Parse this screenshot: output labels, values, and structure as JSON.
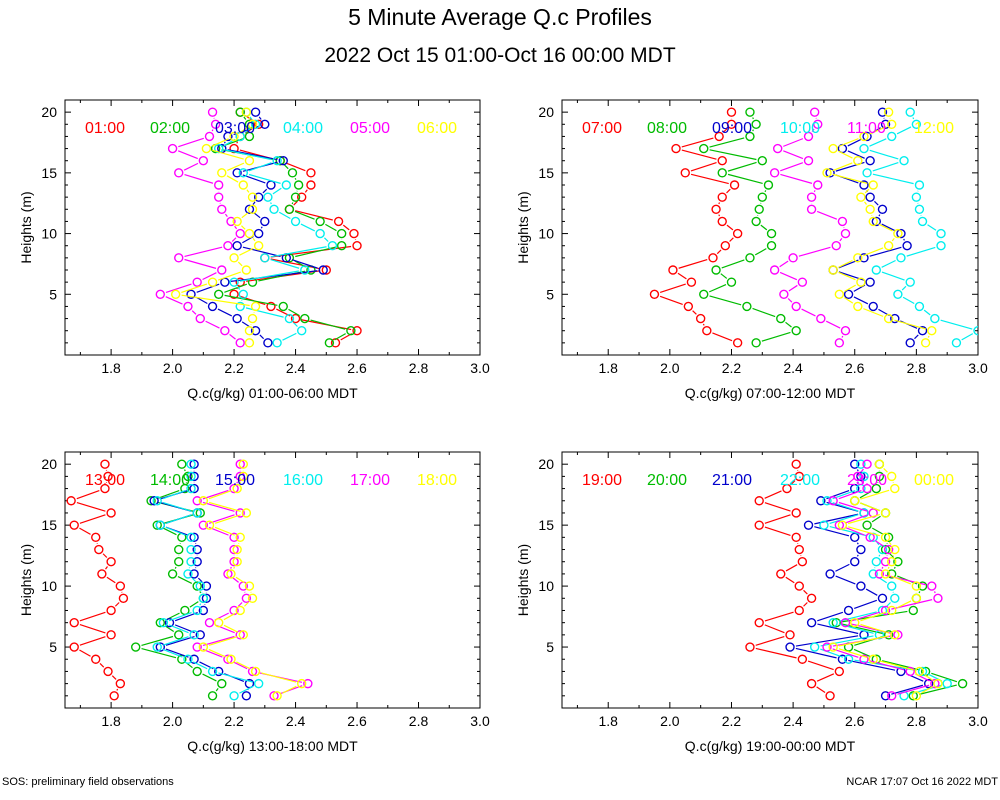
{
  "title": "5 Minute Average Q.c Profiles",
  "subtitle": "2022 Oct 15 01:00-Oct 16 00:00 MDT",
  "footer_left": "SOS: preliminary field observations",
  "footer_right": "NCAR 17:07 Oct 16 2022 MDT",
  "colors": [
    "#ff0000",
    "#00bb00",
    "#0000cc",
    "#00eeee",
    "#ff00ff",
    "#ffff00"
  ],
  "heights": [
    1,
    2,
    3,
    4,
    5,
    6,
    7,
    8,
    9,
    10,
    11,
    12,
    13,
    14,
    15,
    16,
    17,
    18,
    19,
    20
  ],
  "chart_data": [
    {
      "type": "line",
      "xlabel": "Q.c(g/kg) 01:00-06:00 MDT",
      "ylabel": "Heights (m)",
      "xlim": [
        1.65,
        3.0
      ],
      "ylim": [
        0,
        21
      ],
      "xticks": [
        "1.8",
        "2.0",
        "2.2",
        "2.4",
        "2.6",
        "2.8",
        "3.0"
      ],
      "yticks": [
        "5",
        "10",
        "15",
        "20"
      ],
      "series": [
        {
          "name": "01:00",
          "values": [
            2.53,
            2.6,
            2.4,
            2.32,
            2.2,
            2.22,
            2.5,
            2.3,
            2.6,
            2.59,
            2.54,
            2.38,
            2.42,
            2.45,
            2.45,
            2.35,
            2.2,
            2.22,
            2.28,
            2.22
          ]
        },
        {
          "name": "02:00",
          "values": [
            2.51,
            2.58,
            2.43,
            2.36,
            2.15,
            2.26,
            2.45,
            2.38,
            2.55,
            2.55,
            2.48,
            2.38,
            2.4,
            2.41,
            2.39,
            2.35,
            2.14,
            2.25,
            2.25,
            2.22
          ]
        },
        {
          "name": "03:00",
          "values": [
            2.31,
            2.27,
            2.21,
            2.13,
            2.06,
            2.17,
            2.49,
            2.37,
            2.21,
            2.28,
            2.3,
            2.25,
            2.28,
            2.32,
            2.21,
            2.36,
            2.16,
            2.18,
            2.3,
            2.27
          ]
        },
        {
          "name": "04:00",
          "values": [
            2.34,
            2.42,
            2.38,
            2.22,
            2.23,
            2.2,
            2.43,
            2.3,
            2.52,
            2.48,
            2.4,
            2.33,
            2.31,
            2.37,
            2.23,
            2.34,
            2.15,
            2.22,
            2.27,
            2.24
          ]
        },
        {
          "name": "05:00",
          "values": [
            2.22,
            2.17,
            2.09,
            2.05,
            1.96,
            2.08,
            2.16,
            2.02,
            2.18,
            2.22,
            2.19,
            2.16,
            2.15,
            2.15,
            2.02,
            2.1,
            2.0,
            2.12,
            2.14,
            2.13
          ]
        },
        {
          "name": "06:00",
          "values": [
            2.25,
            2.25,
            2.26,
            2.27,
            2.01,
            2.13,
            2.24,
            2.2,
            2.28,
            2.25,
            2.21,
            2.26,
            2.26,
            2.23,
            2.16,
            2.25,
            2.11,
            2.2,
            2.26,
            2.24
          ]
        }
      ]
    },
    {
      "type": "line",
      "xlabel": "Q.c(g/kg) 07:00-12:00 MDT",
      "ylabel": "Heights (m)",
      "xlim": [
        1.65,
        3.0
      ],
      "ylim": [
        0,
        21
      ],
      "xticks": [
        "1.8",
        "2.0",
        "2.2",
        "2.4",
        "2.6",
        "2.8",
        "3.0"
      ],
      "yticks": [
        "5",
        "10",
        "15",
        "20"
      ],
      "series": [
        {
          "name": "07:00",
          "values": [
            2.22,
            2.12,
            2.1,
            2.06,
            1.95,
            2.07,
            2.01,
            2.14,
            2.18,
            2.22,
            2.17,
            2.15,
            2.17,
            2.21,
            2.05,
            2.17,
            2.02,
            2.16,
            2.2,
            2.2
          ]
        },
        {
          "name": "08:00",
          "values": [
            2.28,
            2.41,
            2.36,
            2.25,
            2.11,
            2.2,
            2.15,
            2.26,
            2.33,
            2.33,
            2.28,
            2.29,
            2.3,
            2.32,
            2.17,
            2.3,
            2.11,
            2.26,
            2.28,
            2.26
          ]
        },
        {
          "name": "09:00",
          "values": [
            2.78,
            2.82,
            2.73,
            2.66,
            2.58,
            2.65,
            2.53,
            2.63,
            2.77,
            2.75,
            2.67,
            2.69,
            2.65,
            2.63,
            2.52,
            2.65,
            2.56,
            2.64,
            2.7,
            2.69
          ]
        },
        {
          "name": "10:00",
          "values": [
            2.93,
            3.0,
            2.86,
            2.81,
            2.74,
            2.78,
            2.67,
            2.75,
            2.88,
            2.88,
            2.82,
            2.81,
            2.8,
            2.81,
            2.64,
            2.76,
            2.63,
            2.72,
            2.8,
            2.78
          ]
        },
        {
          "name": "11:00",
          "values": [
            2.55,
            2.57,
            2.49,
            2.41,
            2.37,
            2.43,
            2.34,
            2.4,
            2.54,
            2.57,
            2.56,
            2.46,
            2.46,
            2.48,
            2.34,
            2.45,
            2.35,
            2.45,
            2.48,
            2.47
          ]
        },
        {
          "name": "12:00",
          "values": [
            2.83,
            2.85,
            2.71,
            2.61,
            2.55,
            2.62,
            2.53,
            2.61,
            2.71,
            2.74,
            2.66,
            2.65,
            2.62,
            2.66,
            2.51,
            2.61,
            2.53,
            2.63,
            2.72,
            2.71
          ]
        }
      ]
    },
    {
      "type": "line",
      "xlabel": "Q.c(g/kg) 13:00-18:00 MDT",
      "ylabel": "Heights (m)",
      "xlim": [
        1.65,
        3.0
      ],
      "ylim": [
        0,
        21
      ],
      "xticks": [
        "1.8",
        "2.0",
        "2.2",
        "2.4",
        "2.6",
        "2.8",
        "3.0"
      ],
      "yticks": [
        "5",
        "10",
        "15",
        "20"
      ],
      "series": [
        {
          "name": "13:00",
          "values": [
            1.81,
            1.83,
            1.79,
            1.75,
            1.68,
            1.8,
            1.68,
            1.8,
            1.84,
            1.83,
            1.77,
            1.8,
            1.76,
            1.75,
            1.68,
            1.8,
            1.67,
            1.78,
            1.79,
            1.78
          ]
        },
        {
          "name": "14:00",
          "values": [
            2.13,
            2.16,
            2.08,
            2.03,
            1.88,
            2.02,
            1.96,
            2.04,
            2.1,
            2.08,
            2.0,
            2.02,
            2.02,
            2.03,
            1.95,
            2.09,
            1.93,
            2.04,
            2.05,
            2.03
          ]
        },
        {
          "name": "15:00",
          "values": [
            2.24,
            2.25,
            2.15,
            2.07,
            1.96,
            2.09,
            1.99,
            2.1,
            2.11,
            2.11,
            2.07,
            2.08,
            2.08,
            2.07,
            1.96,
            2.08,
            1.94,
            2.07,
            2.07,
            2.07
          ]
        },
        {
          "name": "16:00",
          "values": [
            2.2,
            2.28,
            2.13,
            2.05,
            1.95,
            2.07,
            1.97,
            2.08,
            2.1,
            2.09,
            2.05,
            2.06,
            2.06,
            2.06,
            1.96,
            2.08,
            1.95,
            2.06,
            2.06,
            2.06
          ]
        },
        {
          "name": "17:00",
          "values": [
            2.33,
            2.44,
            2.26,
            2.18,
            2.08,
            2.22,
            2.12,
            2.2,
            2.24,
            2.23,
            2.18,
            2.2,
            2.2,
            2.2,
            2.1,
            2.22,
            2.08,
            2.2,
            2.22,
            2.22
          ]
        },
        {
          "name": "18:00",
          "values": [
            2.34,
            2.42,
            2.27,
            2.19,
            2.1,
            2.23,
            2.15,
            2.22,
            2.26,
            2.25,
            2.19,
            2.21,
            2.21,
            2.22,
            2.12,
            2.24,
            2.1,
            2.21,
            2.23,
            2.23
          ]
        }
      ]
    },
    {
      "type": "line",
      "xlabel": "Q.c(g/kg) 19:00-00:00 MDT",
      "ylabel": "Heights (m)",
      "xlim": [
        1.65,
        3.0
      ],
      "ylim": [
        0,
        21
      ],
      "xticks": [
        "1.8",
        "2.0",
        "2.2",
        "2.4",
        "2.6",
        "2.8",
        "3.0"
      ],
      "yticks": [
        "5",
        "10",
        "15",
        "20"
      ],
      "series": [
        {
          "name": "19:00",
          "values": [
            2.52,
            2.46,
            2.55,
            2.43,
            2.26,
            2.39,
            2.29,
            2.42,
            2.46,
            2.42,
            2.36,
            2.43,
            2.42,
            2.41,
            2.29,
            2.41,
            2.29,
            2.38,
            2.42,
            2.41
          ]
        },
        {
          "name": "20:00",
          "values": [
            2.79,
            2.95,
            2.83,
            2.67,
            2.58,
            2.71,
            2.54,
            2.79,
            2.8,
            2.82,
            2.72,
            2.74,
            2.7,
            2.71,
            2.64,
            2.7,
            2.6,
            2.67,
            2.68,
            2.68
          ]
        },
        {
          "name": "21:00",
          "values": [
            2.7,
            2.84,
            2.75,
            2.56,
            2.39,
            2.63,
            2.46,
            2.58,
            2.69,
            2.62,
            2.52,
            2.6,
            2.62,
            2.6,
            2.45,
            2.63,
            2.49,
            2.6,
            2.62,
            2.6
          ]
        },
        {
          "name": "22:00",
          "values": [
            2.76,
            2.9,
            2.82,
            2.58,
            2.47,
            2.68,
            2.53,
            2.69,
            2.73,
            2.72,
            2.66,
            2.67,
            2.69,
            2.66,
            2.5,
            2.63,
            2.51,
            2.62,
            2.63,
            2.62
          ]
        },
        {
          "name": "23:00",
          "values": [
            2.72,
            2.86,
            2.78,
            2.63,
            2.51,
            2.74,
            2.57,
            2.7,
            2.87,
            2.85,
            2.68,
            2.7,
            2.71,
            2.65,
            2.55,
            2.66,
            2.53,
            2.64,
            2.61,
            2.64
          ]
        },
        {
          "name": "00:00",
          "values": [
            2.8,
            2.87,
            2.81,
            2.66,
            2.53,
            2.73,
            2.6,
            2.72,
            2.8,
            2.8,
            2.7,
            2.72,
            2.73,
            2.7,
            2.56,
            2.7,
            2.6,
            2.73,
            2.72,
            2.68
          ]
        }
      ]
    }
  ]
}
